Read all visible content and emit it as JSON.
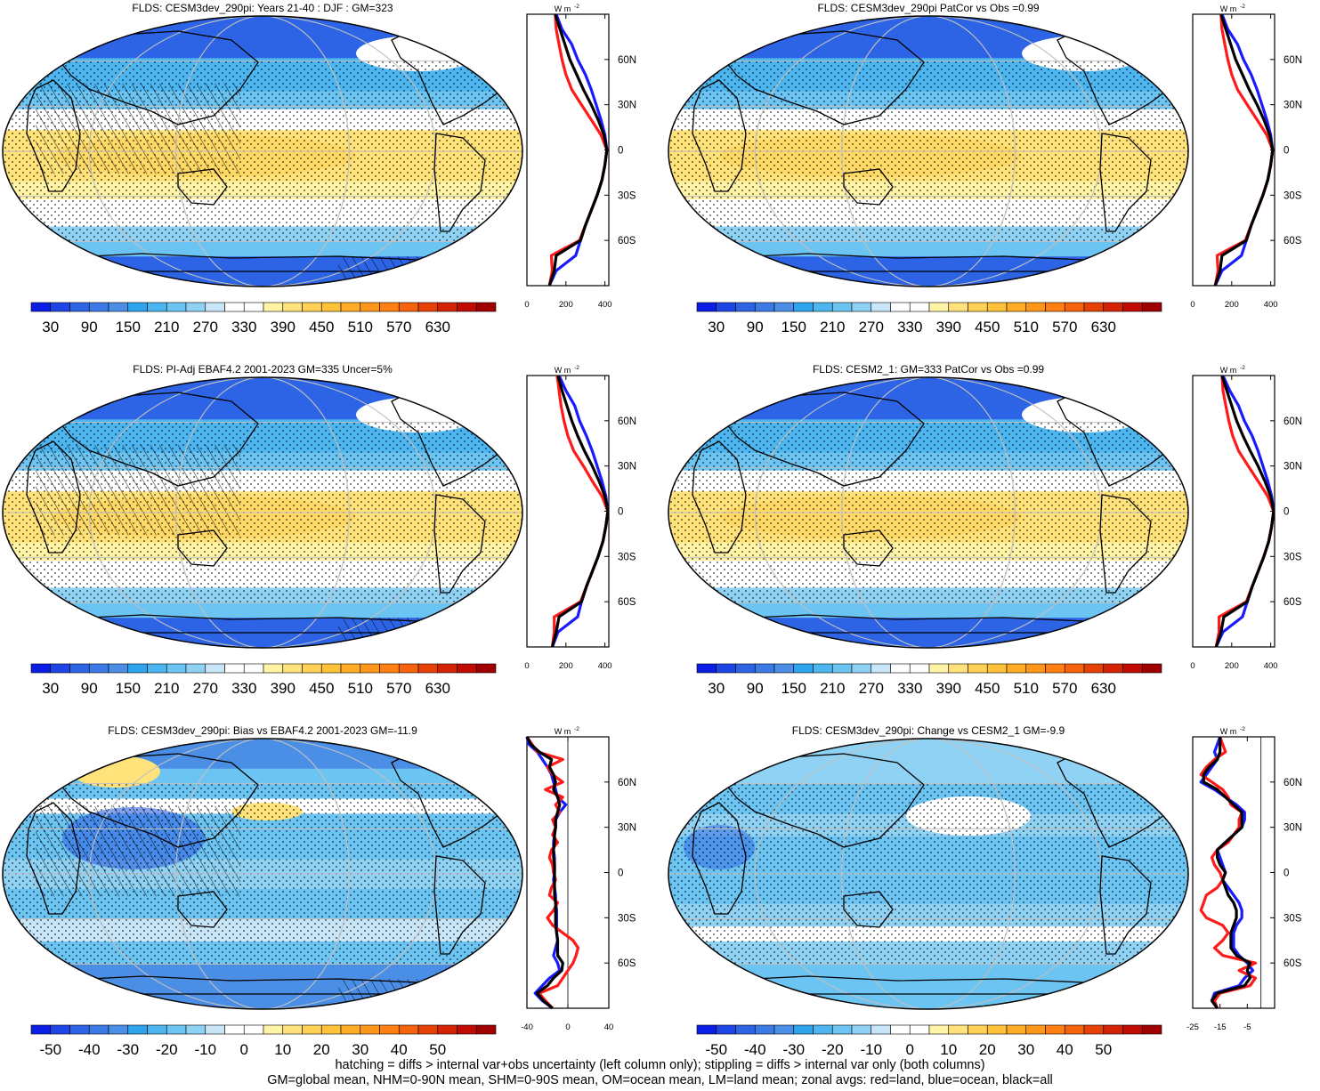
{
  "footer": {
    "line1": "hatching = diffs > internal var+obs uncertainty (left column only); stippling = diffs > internal var only (both columns)",
    "line2": "GM=global mean, NHM=0-90N mean, SHM=0-90S mean, OM=ocean mean, LM=land mean; zonal avgs: red=land, blue=ocean, black=all"
  },
  "colors": {
    "land_line": "#ff1a1a",
    "ocean_line": "#1a1aff",
    "all_line": "#000000",
    "missing": "#c8c8c8"
  },
  "colorbars": {
    "abs": {
      "labels": [
        "30",
        "90",
        "150",
        "210",
        "270",
        "330",
        "390",
        "450",
        "510",
        "570",
        "630"
      ],
      "colors": [
        "#0a1ee6",
        "#1e46e6",
        "#2d64e6",
        "#3c7ae6",
        "#4a8ee6",
        "#2fa4ee",
        "#4db6f0",
        "#6cc4f2",
        "#8fd2f4",
        "#c8e6f8",
        "#ffffff",
        "#ffffff",
        "#fff3a6",
        "#ffe27a",
        "#ffd156",
        "#ffc23a",
        "#ffad28",
        "#ff961c",
        "#ff7f12",
        "#f5640c",
        "#e64208",
        "#d42405",
        "#c00a02",
        "#a00000"
      ]
    },
    "diff": {
      "labels": [
        "-50",
        "-40",
        "-30",
        "-20",
        "-10",
        "0",
        "10",
        "20",
        "30",
        "40",
        "50"
      ],
      "colors": [
        "#0a1ee6",
        "#1e46e6",
        "#2d64e6",
        "#3c7ae6",
        "#4a8ee6",
        "#2fa4ee",
        "#4db6f0",
        "#6cc4f2",
        "#8fd2f4",
        "#c8e6f8",
        "#ffffff",
        "#ffffff",
        "#fff3a6",
        "#ffe27a",
        "#ffd156",
        "#ffc23a",
        "#ffad28",
        "#ff961c",
        "#ff7f12",
        "#f5640c",
        "#e64208",
        "#d42405",
        "#c00a02",
        "#a00000"
      ]
    }
  },
  "lat_labels": [
    "60N",
    "30N",
    "0",
    "30S",
    "60S"
  ],
  "lat_values": [
    60,
    30,
    0,
    -30,
    -60
  ],
  "unit_label": "W m",
  "unit_exp": "-2",
  "chart_data": [
    {
      "type": "heatmap",
      "title": "FLDS: CESM3dev_290pi: Years 21-40 : DJF : GM=323",
      "colorbar": "abs",
      "hatching": true,
      "zonal": {
        "type": "line",
        "xlim": [
          0,
          420
        ],
        "xticks": [
          "0",
          "200",
          "400"
        ],
        "xtick_values": [
          0,
          200,
          400
        ],
        "lat": [
          -90,
          -80,
          -70,
          -60,
          -50,
          -40,
          -30,
          -20,
          -10,
          0,
          10,
          20,
          30,
          40,
          50,
          60,
          70,
          80,
          90
        ],
        "series": [
          {
            "key": "ocean_line",
            "values": [
              115,
              150,
              250,
              275,
              300,
              330,
              360,
              385,
              400,
              410,
              400,
              380,
              355,
              330,
              300,
              260,
              230,
              180,
              150
            ]
          },
          {
            "key": "land_line",
            "values": [
              115,
              130,
              125,
              270,
              300,
              330,
              360,
              385,
              400,
              410,
              380,
              330,
              280,
              230,
              200,
              180,
              165,
              150,
              145
            ]
          },
          {
            "key": "all_line",
            "values": [
              115,
              140,
              150,
              275,
              300,
              330,
              360,
              385,
              400,
              410,
              395,
              365,
              330,
              290,
              255,
              220,
              195,
              170,
              145
            ]
          }
        ]
      }
    },
    {
      "type": "heatmap",
      "title": "FLDS: CESM3dev_290pi PatCor vs Obs =0.99",
      "colorbar": "abs",
      "hatching": false,
      "zonal": {
        "type": "line",
        "xlim": [
          0,
          420
        ],
        "xticks": [
          "0",
          "200",
          "400"
        ],
        "xtick_values": [
          0,
          200,
          400
        ],
        "lat": [
          -90,
          -80,
          -70,
          -60,
          -50,
          -40,
          -30,
          -20,
          -10,
          0,
          10,
          20,
          30,
          40,
          50,
          60,
          70,
          80,
          90
        ],
        "series": [
          {
            "key": "ocean_line",
            "values": [
              115,
              150,
              250,
              275,
              300,
              330,
              360,
              385,
              400,
              410,
              400,
              380,
              355,
              330,
              300,
              260,
              230,
              180,
              150
            ]
          },
          {
            "key": "land_line",
            "values": [
              115,
              130,
              125,
              270,
              300,
              330,
              360,
              385,
              400,
              410,
              380,
              330,
              280,
              230,
              200,
              180,
              165,
              150,
              145
            ]
          },
          {
            "key": "all_line",
            "values": [
              115,
              140,
              150,
              275,
              300,
              330,
              360,
              385,
              400,
              410,
              395,
              365,
              330,
              290,
              255,
              220,
              195,
              170,
              145
            ]
          }
        ]
      }
    },
    {
      "type": "heatmap",
      "title": "FLDS: PI-Adj EBAF4.2 2001-2023 GM=335 Uncer=5%",
      "colorbar": "abs",
      "hatching": true,
      "zonal": {
        "type": "line",
        "xlim": [
          0,
          420
        ],
        "xticks": [
          "0",
          "200",
          "400"
        ],
        "xtick_values": [
          0,
          200,
          400
        ],
        "lat": [
          -90,
          -80,
          -70,
          -60,
          -50,
          -40,
          -30,
          -20,
          -10,
          0,
          10,
          20,
          30,
          40,
          50,
          60,
          70,
          80,
          90
        ],
        "series": [
          {
            "key": "ocean_line",
            "values": [
              130,
              160,
              260,
              280,
              305,
              335,
              365,
              390,
              405,
              415,
              405,
              385,
              360,
              335,
              305,
              270,
              245,
              200,
              165
            ]
          },
          {
            "key": "land_line",
            "values": [
              130,
              140,
              140,
              275,
              305,
              335,
              365,
              390,
              405,
              415,
              385,
              335,
              290,
              240,
              210,
              190,
              175,
              165,
              155
            ]
          },
          {
            "key": "all_line",
            "values": [
              130,
              150,
              165,
              280,
              305,
              335,
              365,
              390,
              405,
              415,
              400,
              370,
              335,
              295,
              260,
              230,
              205,
              180,
              160
            ]
          }
        ]
      }
    },
    {
      "type": "heatmap",
      "title": "FLDS: CESM2_1: GM=333 PatCor vs Obs =0.99",
      "colorbar": "abs",
      "hatching": false,
      "zonal": {
        "type": "line",
        "xlim": [
          0,
          420
        ],
        "xticks": [
          "0",
          "200",
          "400"
        ],
        "xtick_values": [
          0,
          200,
          400
        ],
        "lat": [
          -90,
          -80,
          -70,
          -60,
          -50,
          -40,
          -30,
          -20,
          -10,
          0,
          10,
          20,
          30,
          40,
          50,
          60,
          70,
          80,
          90
        ],
        "series": [
          {
            "key": "ocean_line",
            "values": [
              120,
              155,
              255,
              280,
              305,
              335,
              365,
              390,
              405,
              415,
              405,
              385,
              360,
              335,
              305,
              265,
              235,
              190,
              155
            ]
          },
          {
            "key": "land_line",
            "values": [
              120,
              135,
              135,
              275,
              305,
              335,
              365,
              390,
              405,
              415,
              385,
              335,
              285,
              235,
              205,
              185,
              170,
              155,
              150
            ]
          },
          {
            "key": "all_line",
            "values": [
              120,
              145,
              160,
              280,
              305,
              335,
              365,
              390,
              405,
              415,
              400,
              370,
              335,
              295,
              258,
              225,
              200,
              175,
              150
            ]
          }
        ]
      }
    },
    {
      "type": "heatmap",
      "title": "FLDS: CESM3dev_290pi: Bias vs EBAF4.2 2001-2023 GM=-11.9",
      "colorbar": "diff",
      "hatching": true,
      "zonal": {
        "type": "line",
        "xlim": [
          -40,
          40
        ],
        "xticks": [
          "-40",
          "0",
          "40"
        ],
        "xtick_values": [
          -40,
          0,
          40
        ],
        "lat": [
          -90,
          -85,
          -80,
          -75,
          -70,
          -65,
          -60,
          -55,
          -50,
          -45,
          -40,
          -35,
          -30,
          -25,
          -20,
          -15,
          -10,
          -5,
          0,
          5,
          10,
          15,
          20,
          25,
          30,
          35,
          40,
          45,
          50,
          55,
          60,
          65,
          70,
          75,
          80,
          85,
          90
        ],
        "series": [
          {
            "key": "ocean_line",
            "values": [
              -15,
              -25,
              -32,
              -25,
              -18,
              -8,
              -10,
              -14,
              -12,
              -10,
              -11,
              -11,
              -11,
              -11,
              -12,
              -12,
              -13,
              -14,
              -13,
              -13,
              -13,
              -14,
              -14,
              -13,
              -12,
              -12,
              -8,
              -2,
              -10,
              -12,
              -14,
              -16,
              -20,
              -25,
              -30,
              -38,
              -40
            ]
          },
          {
            "key": "land_line",
            "values": [
              -15,
              -22,
              -28,
              -10,
              -5,
              0,
              5,
              8,
              10,
              5,
              -5,
              -15,
              -20,
              -14,
              -10,
              -18,
              -16,
              -12,
              -14,
              -15,
              -18,
              -16,
              -10,
              -15,
              -12,
              -15,
              -8,
              -12,
              -5,
              -22,
              -5,
              -15,
              -20,
              -5,
              -30,
              -35,
              -40
            ]
          },
          {
            "key": "all_line",
            "values": [
              -15,
              -24,
              -30,
              -20,
              -14,
              -6,
              -5,
              -10,
              -10,
              -10,
              -11,
              -12,
              -12,
              -12,
              -12,
              -13,
              -13,
              -13,
              -13,
              -13,
              -14,
              -14,
              -13,
              -13,
              -12,
              -12,
              -10,
              -8,
              -10,
              -14,
              -12,
              -14,
              -18,
              -16,
              -28,
              -36,
              -40
            ]
          }
        ]
      }
    },
    {
      "type": "heatmap",
      "title": "FLDS: CESM3dev_290pi: Change vs CESM2_1 GM=-9.9",
      "colorbar": "diff",
      "hatching": false,
      "zonal": {
        "type": "line",
        "xlim": [
          -25,
          5
        ],
        "xticks": [
          "-25",
          "-15",
          "-5"
        ],
        "xtick_values": [
          -25,
          -15,
          -5
        ],
        "lat": [
          -90,
          -85,
          -80,
          -75,
          -70,
          -65,
          -60,
          -55,
          -50,
          -45,
          -40,
          -35,
          -30,
          -25,
          -20,
          -15,
          -10,
          -5,
          0,
          5,
          10,
          15,
          20,
          25,
          30,
          35,
          40,
          45,
          50,
          55,
          60,
          65,
          70,
          75,
          80,
          85,
          90
        ],
        "series": [
          {
            "key": "ocean_line",
            "values": [
              -16,
              -18,
              -17,
              -8,
              -6,
              -3,
              -5,
              -8,
              -10,
              -10,
              -10,
              -9,
              -7,
              -7,
              -8,
              -10,
              -12,
              -14,
              -13,
              -14,
              -15,
              -16,
              -13,
              -10,
              -7,
              -6,
              -6,
              -9,
              -13,
              -17,
              -22,
              -20,
              -18,
              -16,
              -17,
              -16,
              -15
            ]
          },
          {
            "key": "land_line",
            "values": [
              -16,
              -17,
              -15,
              -4,
              -2,
              -8,
              -2,
              -14,
              -17,
              -14,
              -12,
              -14,
              -20,
              -22,
              -21,
              -20,
              -16,
              -14,
              -15,
              -17,
              -18,
              -16,
              -12,
              -10,
              -8,
              -8,
              -7,
              -11,
              -12,
              -14,
              -18,
              -22,
              -20,
              -17,
              -13,
              -14,
              -15
            ]
          },
          {
            "key": "all_line",
            "values": [
              -16,
              -18,
              -16,
              -6,
              -4,
              -5,
              -4,
              -9,
              -11,
              -11,
              -11,
              -10,
              -9,
              -9,
              -10,
              -12,
              -13,
              -14,
              -13,
              -15,
              -16,
              -16,
              -13,
              -10,
              -7,
              -7,
              -7,
              -10,
              -13,
              -16,
              -21,
              -21,
              -19,
              -16,
              -15,
              -15,
              -15
            ]
          }
        ]
      }
    }
  ]
}
